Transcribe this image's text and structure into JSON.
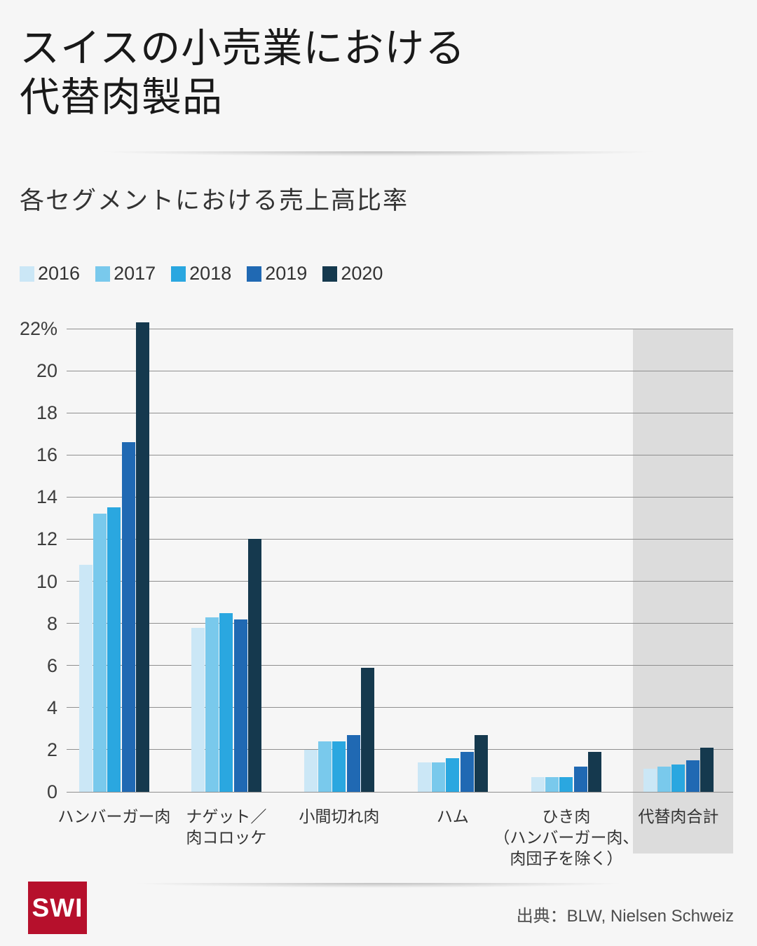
{
  "page": {
    "title_line1": "スイスの小売業における",
    "title_line2": "代替肉製品",
    "subtitle": "各セグメントにおける売上高比率",
    "source_label": "出典：BLW, Nielsen Schweiz",
    "logo_text": "SWI"
  },
  "colors": {
    "background": "#f6f6f6",
    "series": [
      "#cbe7f6",
      "#79c9ec",
      "#2aa7e0",
      "#2069b3",
      "#15394e"
    ],
    "gridline": "#8f8f8f",
    "highlight_band": "#dcdcdc",
    "axis_text": "#3d3d3d",
    "logo_red": "#b6102c"
  },
  "chart_data": {
    "type": "bar",
    "title": "スイスの小売業における代替肉製品",
    "subtitle": "各セグメントにおける売上高比率",
    "categories": [
      "ハンバーガー肉",
      "ナゲット／肉コロッケ",
      "小間切れ肉",
      "ハム",
      "ひき肉（ハンバーガー肉、肉団子を除く）",
      "代替肉合計"
    ],
    "category_lines": [
      [
        "ハンバーガー肉"
      ],
      [
        "ナゲット／",
        "肉コロッケ"
      ],
      [
        "小間切れ肉"
      ],
      [
        "ハム"
      ],
      [
        "ひき肉",
        "（ハンバーガー肉、",
        "肉団子を除く）"
      ],
      [
        "代替肉合計"
      ]
    ],
    "series": [
      {
        "name": "2016",
        "values": [
          10.8,
          7.8,
          2.0,
          1.4,
          0.7,
          1.1
        ]
      },
      {
        "name": "2017",
        "values": [
          13.2,
          8.3,
          2.4,
          1.4,
          0.7,
          1.2
        ]
      },
      {
        "name": "2018",
        "values": [
          13.5,
          8.5,
          2.4,
          1.6,
          0.7,
          1.3
        ]
      },
      {
        "name": "2019",
        "values": [
          16.6,
          8.2,
          2.7,
          1.9,
          1.2,
          1.5
        ]
      },
      {
        "name": "2020",
        "values": [
          22.3,
          12.0,
          5.9,
          2.7,
          1.9,
          2.1
        ]
      }
    ],
    "unit": "%",
    "ylim": [
      0,
      22
    ],
    "ytick_step": 2,
    "ytick_top_label": "22%",
    "grid": true,
    "legend_position": "top",
    "highlighted_category": "代替肉合計",
    "source": "出典：BLW, Nielsen Schweiz"
  }
}
